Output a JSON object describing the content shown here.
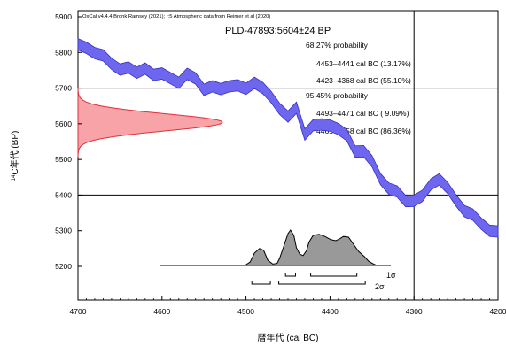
{
  "chart_data": {
    "type": "line",
    "header": "OxCal v4.4.4 Bronk Ramsey (2021); r:5 Atmospheric data from Reimer et al (2020)",
    "sample_label": "PLD-47893:5604±24 BP",
    "xlabel": "暦年代 (cal BC)",
    "ylabel": "14C年代 (BP)",
    "ylabel_sup": "14",
    "ylabel_main": "C年代 (BP)",
    "xlim": [
      4700,
      4200
    ],
    "ylim": [
      5150,
      5900
    ],
    "x_ticks": [
      4700,
      4600,
      4500,
      4400,
      4300,
      4200
    ],
    "y_ticks": [
      5900,
      5800,
      5700,
      5600,
      5500,
      5400,
      5300,
      5200
    ],
    "probabilities": [
      "68.27% probability",
      "4453–4441 cal BC (13.17%)",
      "4423–4368 cal BC (55.10%)",
      "95.45% probability",
      "4493–4471 cal BC ( 9.09%)",
      "4461–4358 cal BC (86.36%)"
    ],
    "sigma_labels": [
      "1σ",
      "2σ"
    ],
    "calibration_curve": {
      "x": [
        4700,
        4690,
        4680,
        4670,
        4660,
        4650,
        4640,
        4630,
        4620,
        4610,
        4600,
        4590,
        4580,
        4570,
        4560,
        4550,
        4540,
        4530,
        4520,
        4510,
        4500,
        4490,
        4480,
        4470,
        4460,
        4450,
        4440,
        4430,
        4420,
        4410,
        4400,
        4390,
        4380,
        4370,
        4360,
        4350,
        4340,
        4330,
        4320,
        4310,
        4300,
        4290,
        4280,
        4270,
        4260,
        4250,
        4240,
        4230,
        4220,
        4210,
        4200
      ],
      "y": [
        5823,
        5813,
        5798,
        5792,
        5768,
        5752,
        5758,
        5743,
        5755,
        5737,
        5741,
        5728,
        5715,
        5740,
        5727,
        5695,
        5705,
        5697,
        5705,
        5708,
        5698,
        5715,
        5700,
        5675,
        5642,
        5620,
        5645,
        5570,
        5596,
        5598,
        5595,
        5585,
        5568,
        5522,
        5523,
        5495,
        5445,
        5418,
        5410,
        5383,
        5384,
        5398,
        5430,
        5444,
        5420,
        5385,
        5355,
        5345,
        5320,
        5300,
        5298
      ],
      "half_width": 16
    },
    "measured_distribution": {
      "mean": 5604,
      "sd": 24
    },
    "calibrated_distribution": {
      "x": [
        4520,
        4505,
        4500,
        4495,
        4490,
        4484,
        4479,
        4474,
        4468,
        4463,
        4460,
        4455,
        4450,
        4447,
        4443,
        4440,
        4436,
        4432,
        4428,
        4425,
        4420,
        4413,
        4406,
        4399,
        4393,
        4388,
        4384,
        4378,
        4372,
        4366,
        4359,
        4354,
        4348,
        4345,
        4340
      ],
      "density": [
        0,
        0,
        0.02,
        0.1,
        0.35,
        0.48,
        0.43,
        0.15,
        0.04,
        0.06,
        0.2,
        0.55,
        0.9,
        1.0,
        0.85,
        0.5,
        0.32,
        0.28,
        0.42,
        0.66,
        0.85,
        0.88,
        0.82,
        0.73,
        0.7,
        0.76,
        0.82,
        0.8,
        0.6,
        0.4,
        0.25,
        0.12,
        0.04,
        0.01,
        0
      ]
    },
    "range_bars": {
      "one_sigma": [
        [
          4453,
          4441
        ],
        [
          4423,
          4368
        ]
      ],
      "two_sigma": [
        [
          4493,
          4471
        ],
        [
          4461,
          4358
        ]
      ]
    },
    "crosshair": {
      "x": 4300,
      "y": [
        5700,
        5400
      ]
    }
  }
}
